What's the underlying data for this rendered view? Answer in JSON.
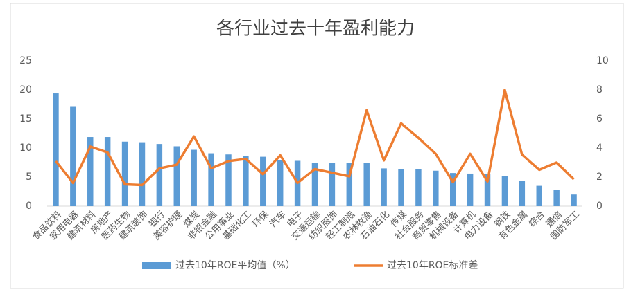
{
  "chart_data": {
    "type": "combo",
    "title": "各行业过去十年盈利能力",
    "categories": [
      "食品饮料",
      "家用电器",
      "建筑材料",
      "房地产",
      "医药生物",
      "建筑装饰",
      "银行",
      "美容护理",
      "煤炭",
      "非银金融",
      "公用事业",
      "基础化工",
      "环保",
      "汽车",
      "电子",
      "交通运输",
      "纺织服饰",
      "轻工制造",
      "农林牧渔",
      "石油石化",
      "传媒",
      "社会服务",
      "商贸零售",
      "机械设备",
      "计算机",
      "电力设备",
      "钢铁",
      "有色金属",
      "综合",
      "通信",
      "国防军工"
    ],
    "series": [
      {
        "name": "过去10年ROE平均值（%）",
        "type": "bar",
        "color": "#5b9bd5",
        "axis": "y",
        "values": [
          19.4,
          17.2,
          11.9,
          11.9,
          11.1,
          11.0,
          10.7,
          10.3,
          9.7,
          9.1,
          8.9,
          8.6,
          8.5,
          7.9,
          7.8,
          7.5,
          7.5,
          7.4,
          7.4,
          6.5,
          6.4,
          6.4,
          6.1,
          5.7,
          5.6,
          5.5,
          5.2,
          4.3,
          3.5,
          2.8,
          2.0
        ]
      },
      {
        "name": "过去10年ROE标准差",
        "type": "line",
        "color": "#ed7d31",
        "axis": "y2",
        "values": [
          3.1,
          1.6,
          4.1,
          3.7,
          1.5,
          1.45,
          2.6,
          2.85,
          4.8,
          2.6,
          3.1,
          3.25,
          2.2,
          3.5,
          1.6,
          2.55,
          2.3,
          2.05,
          6.6,
          3.15,
          5.7,
          4.7,
          3.6,
          1.65,
          3.6,
          1.7,
          8.0,
          3.55,
          2.5,
          3.0,
          1.85
        ]
      }
    ],
    "ylim": [
      0,
      25
    ],
    "yticks": [
      0,
      5,
      10,
      15,
      20,
      25
    ],
    "y2lim": [
      0,
      10
    ],
    "y2ticks": [
      0,
      2,
      4,
      6,
      8,
      10
    ],
    "grid": false,
    "legend": "bottom"
  }
}
